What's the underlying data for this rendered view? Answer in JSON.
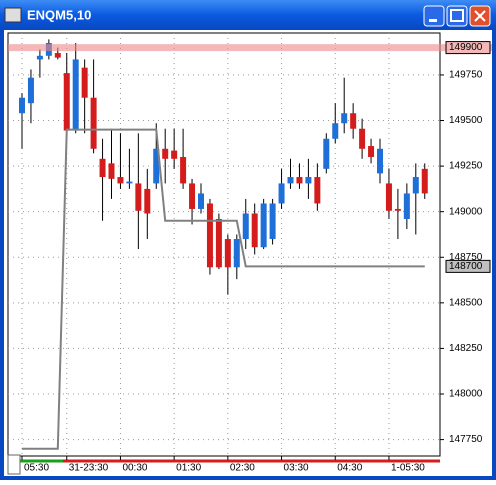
{
  "chart_data": {
    "type": "candlestick",
    "title": "ENQM5,10",
    "categories": [
      "05:30",
      null,
      null,
      null,
      null,
      "31-23:30",
      null,
      null,
      null,
      null,
      null,
      "00:30",
      null,
      null,
      null,
      null,
      null,
      "01:30",
      null,
      null,
      null,
      null,
      null,
      "02:30",
      null,
      null,
      null,
      null,
      null,
      "03:30",
      null,
      null,
      null,
      null,
      null,
      "04:30",
      null,
      null,
      null,
      null,
      null,
      "1-05:30",
      null,
      null,
      null,
      null
    ],
    "open": [
      149540,
      149595,
      149835,
      149855,
      149870,
      149760,
      149445,
      149790,
      149625,
      149290,
      149265,
      149190,
      149155,
      149155,
      149125,
      149155,
      149345,
      149335,
      149300,
      149155,
      149015,
      149045,
      148960,
      148850,
      148695,
      148850,
      148990,
      148805,
      148850,
      149045,
      149155,
      149190,
      149155,
      149190,
      149235,
      149400,
      149485,
      149540,
      149455,
      149360,
      149210,
      149155,
      149015,
      148960,
      149100,
      149235
    ],
    "high": [
      149650,
      149780,
      149890,
      149945,
      149900,
      149870,
      149925,
      149835,
      149835,
      149400,
      149455,
      149430,
      149345,
      149430,
      149235,
      149485,
      149455,
      149455,
      149455,
      149180,
      149155,
      149070,
      148990,
      148875,
      148875,
      149070,
      149045,
      149070,
      149070,
      149235,
      149290,
      149265,
      149290,
      149265,
      149430,
      149595,
      149735,
      149595,
      149510,
      149400,
      149400,
      149235,
      149125,
      149155,
      149265,
      149265
    ],
    "low": [
      149345,
      149485,
      149735,
      149835,
      149835,
      149430,
      149430,
      149430,
      149320,
      148950,
      149070,
      149125,
      149125,
      148795,
      148850,
      149125,
      149155,
      149235,
      149125,
      148930,
      148990,
      148655,
      148685,
      148545,
      148630,
      148795,
      148765,
      148795,
      148820,
      149015,
      149125,
      149125,
      149070,
      149005,
      149210,
      149375,
      149430,
      149400,
      149290,
      149265,
      149155,
      148960,
      148850,
      148905,
      148875,
      149070
    ],
    "close": [
      149625,
      149735,
      149855,
      149925,
      149845,
      149445,
      149835,
      149625,
      149345,
      149190,
      149180,
      149155,
      149165,
      149005,
      148990,
      149345,
      149290,
      149290,
      149155,
      149015,
      149100,
      148695,
      148695,
      148695,
      148850,
      148990,
      148805,
      149045,
      149045,
      149155,
      149190,
      149155,
      149190,
      149045,
      149400,
      149485,
      149540,
      149455,
      149345,
      149300,
      149345,
      149005,
      149005,
      149100,
      149190,
      149100
    ],
    "up_color": "#1e6fd8",
    "down_color": "#d41c1c",
    "line": {
      "values": [
        147700,
        147700,
        147700,
        147700,
        147700,
        149450,
        149450,
        149450,
        149450,
        149450,
        149450,
        149450,
        149450,
        149450,
        149450,
        149450,
        148950,
        148950,
        148950,
        148950,
        148950,
        148950,
        148950,
        148950,
        148950,
        148700,
        148700,
        148700,
        148700,
        148700,
        148700,
        148700,
        148700,
        148700,
        148700,
        148700,
        148700,
        148700,
        148700,
        148700,
        148700,
        148700,
        148700,
        148700,
        148700,
        148700
      ],
      "color": "#808080"
    },
    "ylim": [
      147660,
      149980
    ],
    "yticks": [
      147750,
      148000,
      148250,
      148500,
      148750,
      149000,
      149250,
      149500,
      149750
    ],
    "price_labels": [
      {
        "value": 149900,
        "label": "149900"
      },
      {
        "value": 148700,
        "label": "148700"
      }
    ],
    "grid": true
  }
}
